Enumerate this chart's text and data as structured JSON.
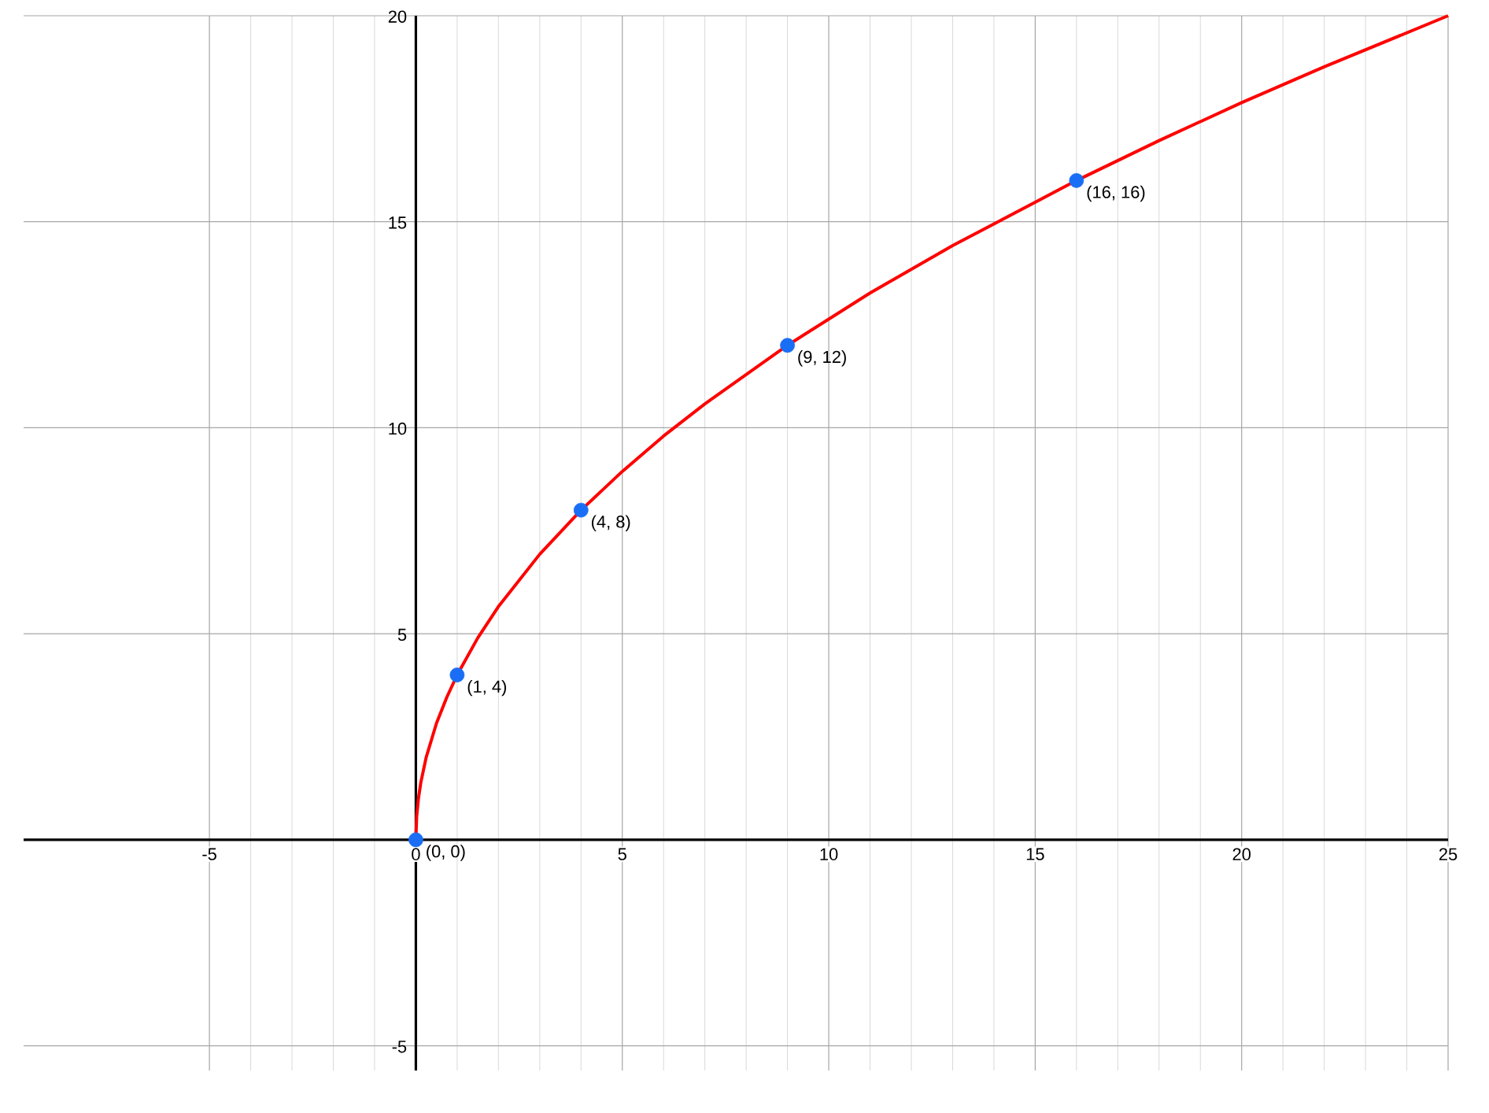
{
  "chart_data": {
    "type": "line",
    "xlim": [
      -9.5,
      25
    ],
    "ylim": [
      -5.6,
      20
    ],
    "xticks": [
      -5,
      0,
      5,
      10,
      15,
      20,
      25
    ],
    "yticks": [
      -5,
      5,
      10,
      15,
      20
    ],
    "grid": true,
    "series": [
      {
        "color": "#ff0000",
        "marker": "none",
        "x": [
          0,
          0.02,
          0.06,
          0.12,
          0.25,
          0.5,
          0.75,
          1,
          1.5,
          2,
          3,
          4,
          5,
          6,
          7,
          9,
          11,
          13,
          16,
          18,
          20,
          22,
          25
        ],
        "values": [
          0,
          0.57,
          0.98,
          1.39,
          2,
          2.83,
          3.46,
          4,
          4.9,
          5.66,
          6.93,
          8,
          8.94,
          9.8,
          10.58,
          12,
          13.27,
          14.42,
          16,
          16.97,
          17.89,
          18.76,
          20
        ]
      },
      {
        "type": "scatter",
        "color": "#1a6ef5",
        "marker": "circle",
        "x": [
          0,
          1,
          4,
          9,
          16
        ],
        "values": [
          0,
          4,
          8,
          12,
          16
        ],
        "value_labels": [
          "(0, 0)",
          "(1, 4)",
          "(4, 8)",
          "(9, 12)",
          "(16, 16)"
        ]
      }
    ]
  }
}
